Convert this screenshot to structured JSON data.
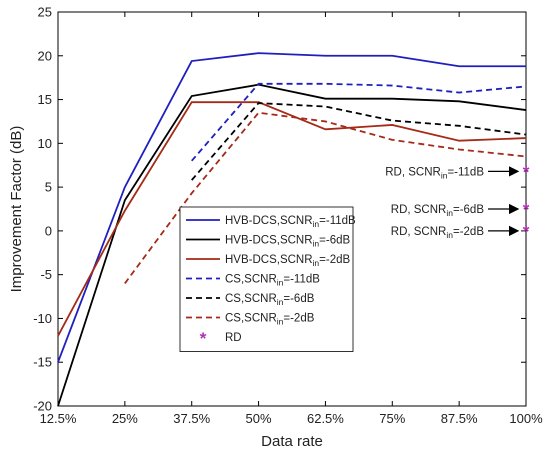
{
  "chart_data": {
    "type": "line",
    "xlabel": "Data rate",
    "ylabel": "Improvement Factor (dB)",
    "categories": [
      "12.5%",
      "25%",
      "37.5%",
      "50%",
      "62.5%",
      "75%",
      "87.5%",
      "100%"
    ],
    "ylim": [
      -20,
      25
    ],
    "yticks": [
      -20,
      -15,
      -10,
      -5,
      0,
      5,
      10,
      15,
      20,
      25
    ],
    "grid": false,
    "legend_position": "lower-left",
    "series": [
      {
        "name_main": "HVB-DCS,SCNR",
        "name_sub": "in",
        "name_tail": "=-11dB",
        "color": "#1f1fbf",
        "dash": "solid",
        "values": [
          -15,
          5,
          19.4,
          20.3,
          20.0,
          20.0,
          18.8,
          18.8
        ]
      },
      {
        "name_main": "HVB-DCS,SCNR",
        "name_sub": "in",
        "name_tail": "=-6dB",
        "color": "#000000",
        "dash": "solid",
        "values": [
          -20,
          3.5,
          15.4,
          16.7,
          15.1,
          15.1,
          14.8,
          13.8
        ]
      },
      {
        "name_main": "HVB-DCS,SCNR",
        "name_sub": "in",
        "name_tail": "=-2dB",
        "color": "#a52a17",
        "dash": "solid",
        "values": [
          -12,
          2.3,
          14.7,
          14.7,
          11.6,
          12.1,
          10.3,
          10.6
        ]
      },
      {
        "name_main": "CS,SCNR",
        "name_sub": "in",
        "name_tail": "=-11dB",
        "color": "#1f1fbf",
        "dash": "dashed",
        "values": [
          null,
          null,
          8.0,
          16.8,
          16.8,
          16.6,
          15.8,
          16.5
        ]
      },
      {
        "name_main": "CS,SCNR",
        "name_sub": "in",
        "name_tail": "=-6dB",
        "color": "#000000",
        "dash": "dashed",
        "values": [
          null,
          null,
          5.8,
          14.6,
          14.2,
          12.6,
          12.0,
          11.0
        ]
      },
      {
        "name_main": "CS,SCNR",
        "name_sub": "in",
        "name_tail": "=-2dB",
        "color": "#a52a17",
        "dash": "dashed",
        "values": [
          null,
          -6.0,
          4.3,
          13.5,
          12.5,
          10.4,
          9.3,
          8.5
        ]
      }
    ],
    "rd": {
      "name": "RD",
      "color": "#b030b0",
      "points": [
        {
          "x": "100%",
          "y": 6.8,
          "label_main": "RD, SCNR",
          "label_sub": "in",
          "label_tail": "=-11dB"
        },
        {
          "x": "100%",
          "y": 2.5,
          "label_main": "RD, SCNR",
          "label_sub": "in",
          "label_tail": "=-6dB"
        },
        {
          "x": "100%",
          "y": 0.0,
          "label_main": "RD, SCNR",
          "label_sub": "in",
          "label_tail": "=-2dB"
        }
      ]
    }
  }
}
